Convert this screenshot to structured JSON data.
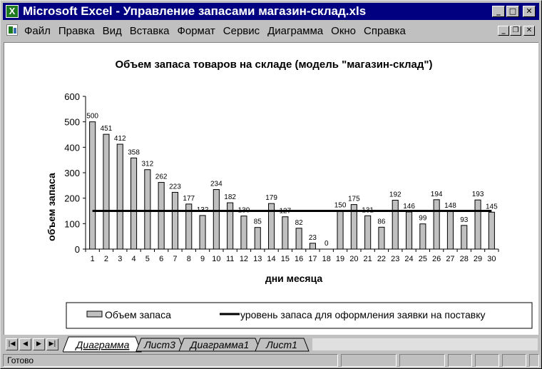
{
  "window": {
    "app_icon": "excel-icon",
    "title": "Microsoft Excel - Управление запасами магазин-склад.xls",
    "buttons": {
      "minimize": "_",
      "maximize": "□",
      "close": "✕"
    }
  },
  "menu": {
    "items": [
      "Файл",
      "Правка",
      "Вид",
      "Вставка",
      "Формат",
      "Сервис",
      "Диаграмма",
      "Окно",
      "Справка"
    ],
    "doc_buttons": {
      "minimize": "_",
      "restore": "❐",
      "close": "✕"
    }
  },
  "chart_data": {
    "type": "bar",
    "title": "Объем запаса товаров на складе (модель \"магазин-склад\")",
    "xlabel": "дни месяца",
    "ylabel": "объем запаса",
    "ylim": [
      0,
      600
    ],
    "yticks": [
      "0",
      "100",
      "200",
      "300",
      "400",
      "500",
      "600"
    ],
    "categories": [
      "1",
      "2",
      "3",
      "4",
      "5",
      "6",
      "7",
      "8",
      "9",
      "10",
      "11",
      "12",
      "13",
      "14",
      "15",
      "16",
      "17",
      "18",
      "19",
      "20",
      "21",
      "22",
      "23",
      "24",
      "25",
      "26",
      "27",
      "28",
      "29",
      "30"
    ],
    "series": [
      {
        "name": "Объем запаса",
        "type": "bar",
        "color": "#c0c0c0",
        "values": [
          500,
          451,
          412,
          358,
          312,
          262,
          223,
          177,
          132,
          234,
          182,
          130,
          85,
          179,
          127,
          82,
          23,
          0,
          150,
          175,
          131,
          86,
          192,
          146,
          99,
          194,
          148,
          93,
          193,
          145
        ]
      },
      {
        "name": "уровень запаса для оформления заявки на поставку",
        "type": "line",
        "color": "#000000",
        "values": [
          150,
          150,
          150,
          150,
          150,
          150,
          150,
          150,
          150,
          150,
          150,
          150,
          150,
          150,
          150,
          150,
          150,
          150,
          150,
          150,
          150,
          150,
          150,
          150,
          150,
          150,
          150,
          150,
          150,
          150
        ]
      }
    ],
    "legend": "bottom",
    "grid": false
  },
  "sheets": {
    "nav_buttons": [
      "first-sheet",
      "prev-sheet",
      "next-sheet",
      "last-sheet"
    ],
    "nav_glyphs": [
      "|◀",
      "◀",
      "▶",
      "▶|"
    ],
    "tabs": [
      "Диаграмма",
      "Лист3",
      "Диаграмма1",
      "Лист1"
    ],
    "active_tab": "Диаграмма"
  },
  "status": {
    "text": "Готово"
  }
}
